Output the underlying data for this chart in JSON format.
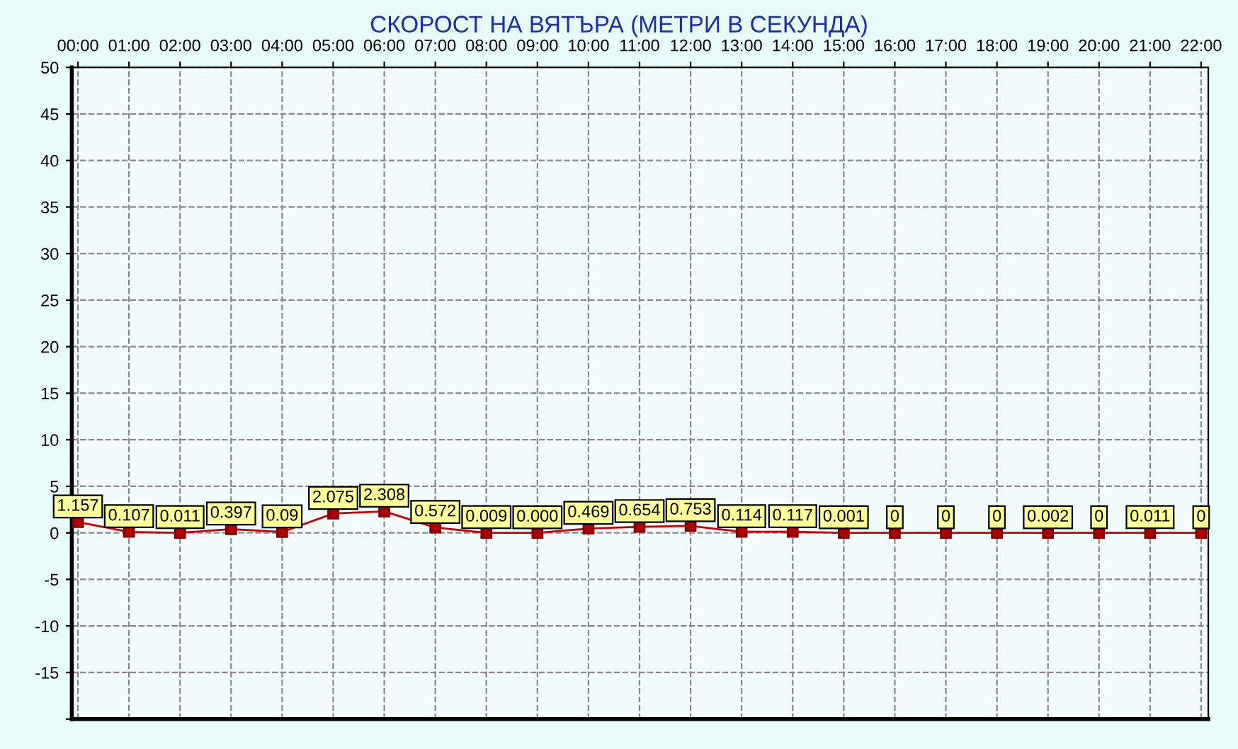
{
  "chart_data": {
    "type": "line",
    "title": "СКОРОСТ НА ВЯТЪРА (МЕТРИ В СЕКУНДА)",
    "categories": [
      "00:00",
      "01:00",
      "02:00",
      "03:00",
      "04:00",
      "05:00",
      "06:00",
      "07:00",
      "08:00",
      "09:00",
      "10:00",
      "11:00",
      "12:00",
      "13:00",
      "14:00",
      "15:00",
      "16:00",
      "17:00",
      "18:00",
      "19:00",
      "20:00",
      "21:00",
      "22:00"
    ],
    "series": [
      {
        "color": "#cc0000",
        "values": [
          1.157,
          0.107,
          0.011,
          0.397,
          0.09,
          2.075,
          2.308,
          0.572,
          0.009,
          0.0,
          0.469,
          0.654,
          0.753,
          0.114,
          0.117,
          0.001,
          0,
          0,
          0,
          0.002,
          0,
          0.011,
          0
        ],
        "value_labels": [
          "1.157",
          "0.107",
          "0.011",
          "0.397",
          "0.09",
          "2.075",
          "2.308",
          "0.572",
          "0.009",
          "0.000",
          "0.469",
          "0.654",
          "0.753",
          "0.114",
          "0.117",
          "0.001",
          "0",
          "0",
          "0",
          "0.002",
          "0",
          "0.011",
          "0"
        ]
      }
    ],
    "ylim": [
      -20,
      50
    ],
    "yticks": [
      {
        "value": -20,
        "label": null
      },
      -15,
      -10,
      -5,
      0,
      5,
      10,
      15,
      20,
      25,
      30,
      35,
      40,
      45,
      50
    ],
    "grid": true,
    "marker": "square",
    "line_style": "solid",
    "legend": false
  }
}
